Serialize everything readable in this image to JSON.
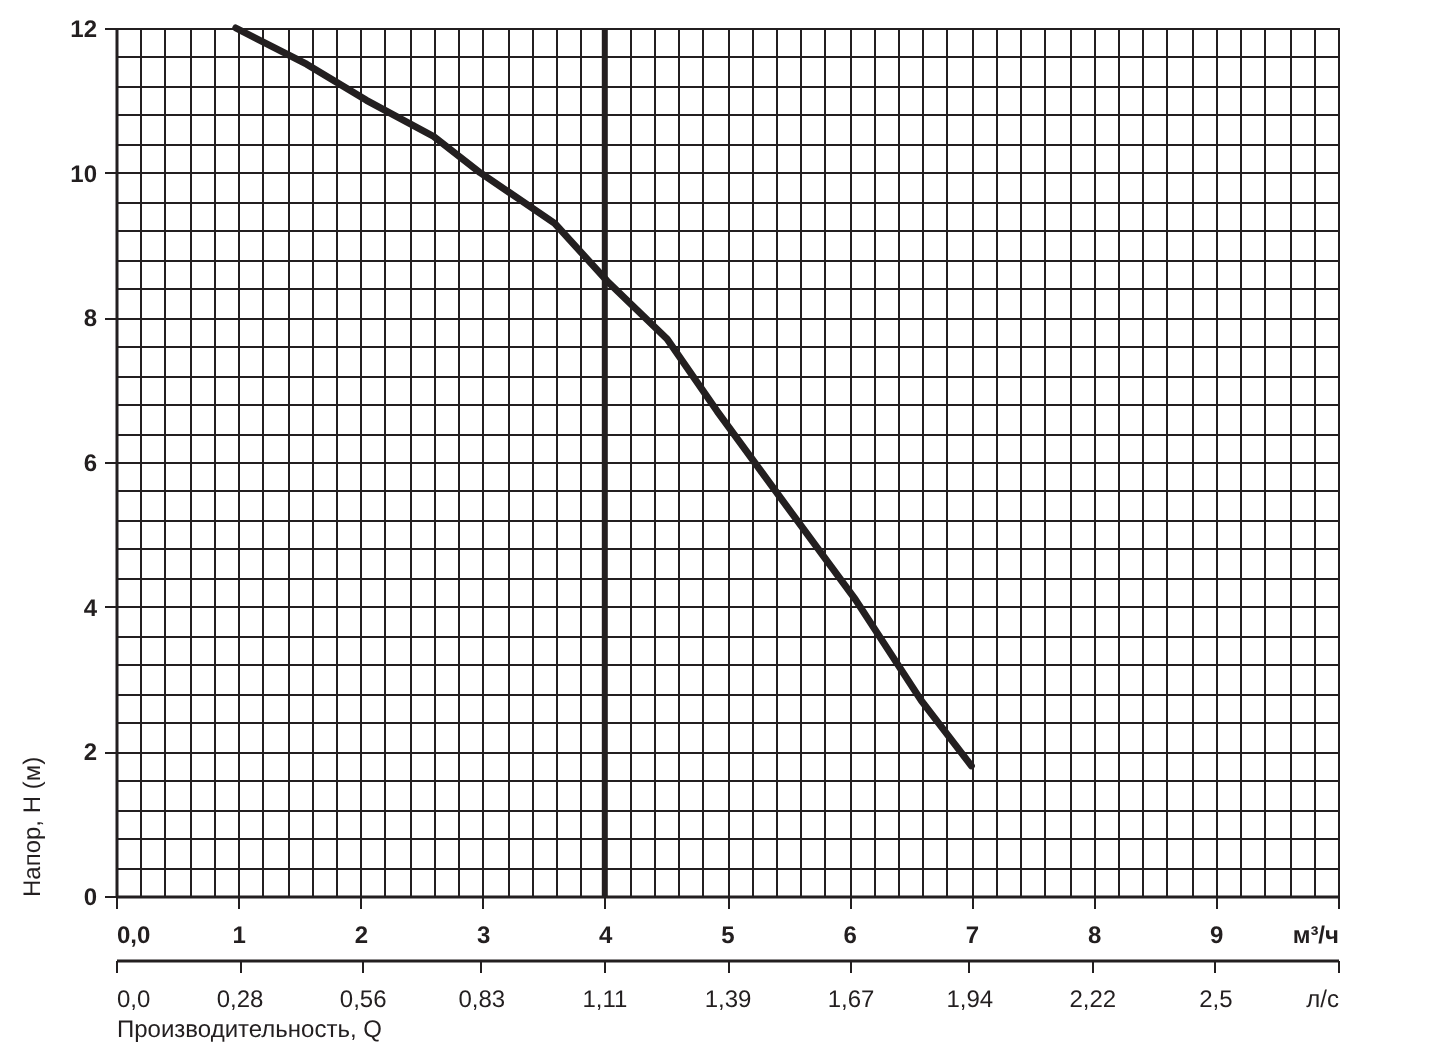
{
  "chart_data": {
    "type": "line",
    "xlabel": "Производительность, Q",
    "ylabel": "Напор, H (м)",
    "x": [
      0.98,
      1.56,
      2.05,
      2.6,
      2.98,
      3.59,
      4.02,
      4.51,
      4.92,
      5.44,
      6.05,
      6.59,
      7.0
    ],
    "series": [
      {
        "color": "#231f20",
        "values": [
          12,
          11.5,
          11.0,
          10.5,
          10.0,
          9.3,
          8.5,
          7.7,
          6.7,
          5.5,
          4.1,
          2.7,
          1.8
        ]
      }
    ],
    "xlim": [
      0,
      10
    ],
    "xticks": [
      {
        "value": 0,
        "label": "0,0"
      },
      1,
      2,
      3,
      4,
      5,
      6,
      7,
      8,
      9,
      {
        "value": 10,
        "label": "м³/ч"
      }
    ],
    "x2lim": [
      0,
      2.78
    ],
    "x2ticks": [
      {
        "value": 0,
        "label": "0,0"
      },
      {
        "value": 0.28,
        "label": "0,28"
      },
      {
        "value": 0.56,
        "label": "0,56"
      },
      {
        "value": 0.83,
        "label": "0,83"
      },
      {
        "value": 1.11,
        "label": "1,11"
      },
      {
        "value": 1.39,
        "label": "1,39"
      },
      {
        "value": 1.67,
        "label": "1,67"
      },
      {
        "value": 1.94,
        "label": "1,94"
      },
      {
        "value": 2.22,
        "label": "2,22"
      },
      {
        "value": 2.5,
        "label": "2,5"
      },
      {
        "value": 2.78,
        "label": "л/с"
      }
    ],
    "ylim": [
      0,
      12
    ],
    "yticks": [
      0,
      2,
      4,
      6,
      8,
      10,
      12
    ],
    "ref_lines": [
      {
        "axis": "x",
        "value": 4,
        "color": "#231f20"
      }
    ],
    "grid": true,
    "legend": false,
    "marker": "none",
    "line_style": "solid"
  }
}
